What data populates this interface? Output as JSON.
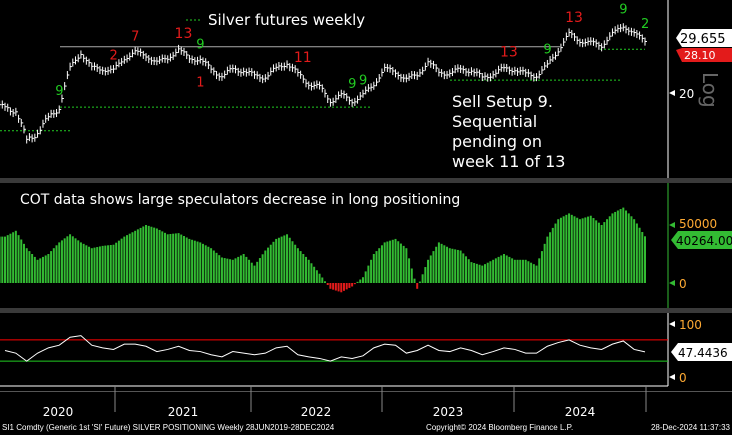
{
  "chart_data": [
    {
      "type": "bar",
      "panel": "price",
      "legend": "Silver futures weekly",
      "scale": "log",
      "x": [
        "2020-01",
        "2020-02",
        "2020-03",
        "2020-04",
        "2020-05",
        "2020-06",
        "2020-07",
        "2020-08",
        "2020-09",
        "2020-10",
        "2020-11",
        "2020-12",
        "2021-01",
        "2021-02",
        "2021-03",
        "2021-04",
        "2021-05",
        "2021-06",
        "2021-07",
        "2021-08",
        "2021-09",
        "2021-10",
        "2021-11",
        "2021-12",
        "2022-01",
        "2022-02",
        "2022-03",
        "2022-04",
        "2022-05",
        "2022-06",
        "2022-07",
        "2022-08",
        "2022-09",
        "2022-10",
        "2022-11",
        "2022-12",
        "2023-01",
        "2023-02",
        "2023-03",
        "2023-04",
        "2023-05",
        "2023-06",
        "2023-07",
        "2023-08",
        "2023-09",
        "2023-10",
        "2023-11",
        "2023-12",
        "2024-01",
        "2024-02",
        "2024-03",
        "2024-04",
        "2024-05",
        "2024-06",
        "2024-07",
        "2024-08",
        "2024-09",
        "2024-10",
        "2024-11",
        "2024-12"
      ],
      "values": [
        18,
        17.5,
        14,
        15,
        16.5,
        18,
        24,
        27,
        24,
        24,
        23.5,
        26,
        27,
        26.5,
        25,
        26,
        27.5,
        26,
        25.5,
        24,
        22.5,
        24,
        23.5,
        22.8,
        22.5,
        24,
        25,
        23,
        21.5,
        20.8,
        19,
        19.5,
        19,
        19.5,
        21.5,
        23.8,
        23.5,
        22,
        23,
        25,
        23.5,
        23,
        24,
        23.5,
        22.5,
        23,
        24,
        23.8,
        23,
        22.8,
        24.5,
        27.5,
        31,
        29.5,
        29,
        28.5,
        31,
        33,
        31,
        29.655
      ],
      "ytick_labels": [
        "20"
      ],
      "last_value": "29.655",
      "secondary_value": "28.10",
      "axis_label": "Log",
      "annotations": [
        "Sell Setup 9.",
        "Sequential",
        "pending on",
        "week 11 of 13"
      ],
      "td_labels": [
        {
          "i": 5,
          "text": "9",
          "color": "#22cc22"
        },
        {
          "i": 10,
          "text": "2",
          "color": "#e31b1b"
        },
        {
          "i": 12,
          "text": "7",
          "color": "#e31b1b"
        },
        {
          "i": 16,
          "text": "13",
          "color": "#e31b1b"
        },
        {
          "i": 18,
          "text": "9",
          "color": "#22cc22"
        },
        {
          "i": 18,
          "text": "1",
          "color": "#e31b1b"
        },
        {
          "i": 27,
          "text": "11",
          "color": "#e31b1b"
        },
        {
          "i": 32,
          "text": "9",
          "color": "#22cc22"
        },
        {
          "i": 33,
          "text": "9",
          "color": "#22cc22"
        },
        {
          "i": 46,
          "text": "13",
          "color": "#e31b1b"
        },
        {
          "i": 50,
          "text": "9",
          "color": "#22cc22"
        },
        {
          "i": 52,
          "text": "13",
          "color": "#e31b1b"
        },
        {
          "i": 57,
          "text": "9",
          "color": "#22cc22"
        },
        {
          "i": 59,
          "text": "2",
          "color": "#22cc22"
        }
      ]
    },
    {
      "type": "bar",
      "panel": "cot",
      "title": "COT data shows large speculators decrease in long positioning",
      "values": [
        40000,
        45000,
        30000,
        20000,
        25000,
        35000,
        42000,
        35000,
        30000,
        32000,
        33000,
        40000,
        45000,
        50000,
        47000,
        42000,
        43000,
        38000,
        35000,
        30000,
        22000,
        20000,
        25000,
        15000,
        28000,
        38000,
        42000,
        30000,
        20000,
        8000,
        -5000,
        -8000,
        -3000,
        5000,
        25000,
        35000,
        38000,
        30000,
        -5000,
        20000,
        35000,
        30000,
        28000,
        18000,
        15000,
        20000,
        25000,
        20000,
        20000,
        15000,
        40000,
        55000,
        60000,
        55000,
        58000,
        50000,
        60000,
        65000,
        55000,
        40264
      ],
      "ytick_labels": [
        "50000",
        "0"
      ],
      "last_value": "40264.00",
      "ylim": [
        -15000,
        75000
      ]
    },
    {
      "type": "line",
      "panel": "rsi",
      "values": [
        50,
        45,
        30,
        45,
        55,
        60,
        75,
        78,
        60,
        55,
        52,
        62,
        62,
        58,
        48,
        52,
        58,
        50,
        48,
        42,
        38,
        48,
        45,
        42,
        45,
        55,
        58,
        42,
        38,
        35,
        30,
        38,
        35,
        40,
        55,
        62,
        60,
        45,
        50,
        60,
        50,
        48,
        55,
        50,
        42,
        48,
        55,
        52,
        45,
        45,
        58,
        65,
        70,
        60,
        55,
        52,
        62,
        68,
        52,
        47.4436
      ],
      "ytick_labels": [
        "100",
        "0"
      ],
      "last_value": "47.4436",
      "ylim": [
        0,
        100
      ],
      "upper_line": 70,
      "lower_line": 30
    }
  ],
  "x_axis": {
    "years": [
      "2020",
      "2021",
      "2022",
      "2023",
      "2024"
    ]
  },
  "footer": {
    "security": "SI1 Comdty (Generic 1st 'SI' Future) SILVER POSITIONING  Weekly 28JUN2019-28DEC2024",
    "copyright": "Copyright© 2024 Bloomberg Finance L.P.",
    "timestamp": "28-Dec-2024 11:37:33"
  },
  "colors": {
    "price": "#ffffff",
    "cot_pos": "#33bb33",
    "cot_neg": "#e31b1b",
    "rsi": "#ffffff",
    "rsi_upper": "#ff0000",
    "rsi_lower": "#22cc22",
    "support": "#22cc22"
  }
}
